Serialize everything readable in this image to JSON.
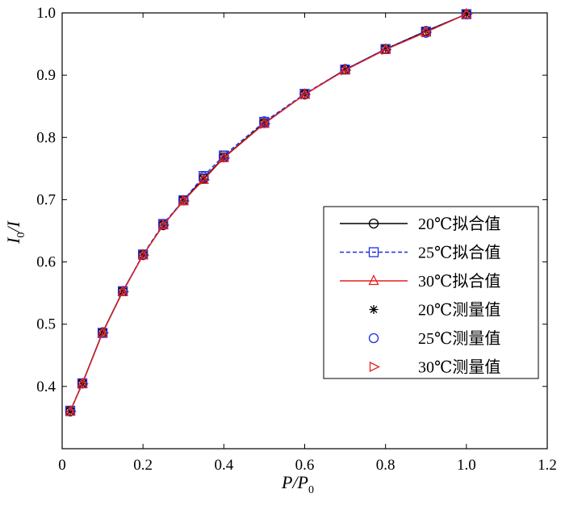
{
  "chart_data": {
    "type": "line",
    "title": "",
    "xlabel": {
      "main": "P/P",
      "sub": "0"
    },
    "ylabel": {
      "main": "I",
      "sub": "0",
      "tail": "/I"
    },
    "xlim": [
      0,
      1.2
    ],
    "ylim": [
      0.3,
      1.0
    ],
    "xticks": [
      0,
      0.2,
      0.4,
      0.6,
      0.8,
      1.0,
      1.2
    ],
    "xtick_labels": [
      "0",
      "0.2",
      "0.4",
      "0.6",
      "0.8",
      "1.0",
      "1.2"
    ],
    "yticks": [
      0.4,
      0.5,
      0.6,
      0.7,
      0.8,
      0.9,
      1.0
    ],
    "ytick_labels": [
      "0.4",
      "0.5",
      "0.6",
      "0.7",
      "0.8",
      "0.9",
      "1.0"
    ],
    "grid": false,
    "legend_position": "center-right",
    "x": [
      0.02,
      0.05,
      0.1,
      0.15,
      0.2,
      0.25,
      0.3,
      0.35,
      0.4,
      0.5,
      0.6,
      0.7,
      0.8,
      0.9,
      1.0
    ],
    "series": [
      {
        "name": "20℃拟合值",
        "kind": "line",
        "color": "#000000",
        "dash": "",
        "marker": "circle",
        "values": [
          0.36,
          0.405,
          0.487,
          0.553,
          0.611,
          0.659,
          0.699,
          0.734,
          0.768,
          0.823,
          0.869,
          0.909,
          0.942,
          0.971,
          0.998
        ]
      },
      {
        "name": "25℃拟合值",
        "kind": "line",
        "color": "#1f2fe0",
        "dash": "5,3",
        "marker": "square",
        "values": [
          0.361,
          0.405,
          0.486,
          0.553,
          0.612,
          0.661,
          0.699,
          0.738,
          0.771,
          0.825,
          0.87,
          0.909,
          0.942,
          0.97,
          0.998
        ]
      },
      {
        "name": "30℃拟合值",
        "kind": "line",
        "color": "#e32020",
        "dash": "",
        "marker": "triangle",
        "values": [
          0.36,
          0.404,
          0.486,
          0.552,
          0.611,
          0.659,
          0.698,
          0.732,
          0.767,
          0.822,
          0.869,
          0.908,
          0.941,
          0.969,
          0.998
        ]
      },
      {
        "name": "20℃测量值",
        "kind": "scatter",
        "color": "#000000",
        "marker": "star",
        "values": [
          0.36,
          0.404,
          0.487,
          0.553,
          0.611,
          0.659,
          0.699,
          0.733,
          0.768,
          0.823,
          0.869,
          0.909,
          0.942,
          0.971,
          0.998
        ]
      },
      {
        "name": "25℃测量值",
        "kind": "scatter",
        "color": "#1f2fe0",
        "marker": "circle",
        "values": [
          0.361,
          0.405,
          0.486,
          0.553,
          0.612,
          0.661,
          0.699,
          0.737,
          0.771,
          0.826,
          0.87,
          0.91,
          0.942,
          0.968,
          0.998
        ]
      },
      {
        "name": "30℃测量值",
        "kind": "scatter",
        "color": "#e32020",
        "marker": "triangle-right",
        "values": [
          0.36,
          0.404,
          0.486,
          0.552,
          0.611,
          0.659,
          0.698,
          0.732,
          0.767,
          0.822,
          0.869,
          0.908,
          0.941,
          0.969,
          0.998
        ]
      }
    ]
  }
}
